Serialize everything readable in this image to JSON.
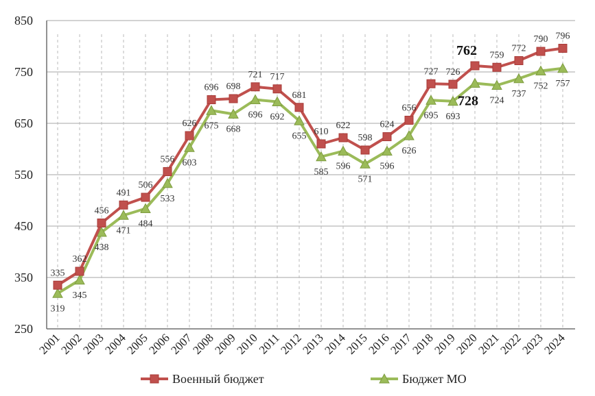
{
  "chart_data": {
    "type": "line",
    "title": "",
    "xlabel": "",
    "ylabel": "",
    "ylim": [
      250,
      850
    ],
    "yticks": [
      250,
      350,
      450,
      550,
      650,
      750,
      850
    ],
    "grid": true,
    "legend_position": "bottom",
    "categories": [
      "2001",
      "2002",
      "2003",
      "2004",
      "2005",
      "2006",
      "2007",
      "2008",
      "2009",
      "2010",
      "2011",
      "2012",
      "2013",
      "2014",
      "2015",
      "2016",
      "2017",
      "2018",
      "2019",
      "2020",
      "2021",
      "2022",
      "2023",
      "2024"
    ],
    "series": [
      {
        "name": "Военный бюджет",
        "color": "#c0504d",
        "marker": "square",
        "label_position": "above",
        "values": [
          335,
          362,
          456,
          491,
          506,
          556,
          626,
          696,
          698,
          721,
          717,
          681,
          610,
          622,
          598,
          624,
          656,
          727,
          726,
          762,
          759,
          772,
          790,
          796
        ],
        "highlight_index": 19
      },
      {
        "name": "Бюджет МО",
        "color": "#9bbb59",
        "marker": "triangle",
        "label_position": "below",
        "values": [
          319,
          345,
          438,
          471,
          484,
          533,
          603,
          675,
          668,
          696,
          692,
          655,
          585,
          596,
          571,
          596,
          626,
          695,
          693,
          728,
          724,
          737,
          752,
          757
        ],
        "highlight_index": 19
      }
    ]
  }
}
